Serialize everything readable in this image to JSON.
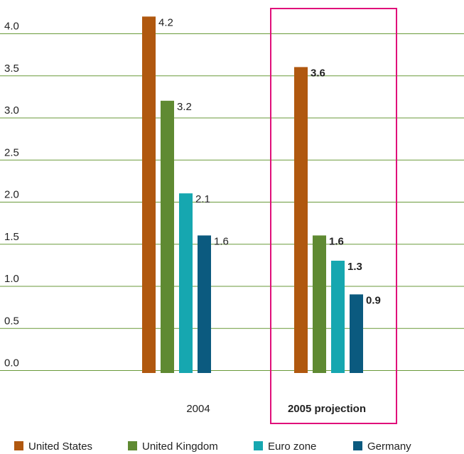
{
  "chart_data": {
    "type": "bar",
    "categories": [
      "2004",
      "2005 projection"
    ],
    "highlighted_category": "2005 projection",
    "series": [
      {
        "name": "United States",
        "color": "#b0580f",
        "values": [
          4.2,
          3.6
        ]
      },
      {
        "name": "United Kingdom",
        "color": "#5f8a32",
        "values": [
          3.2,
          1.6
        ]
      },
      {
        "name": "Euro zone",
        "color": "#16a7b0",
        "values": [
          2.1,
          1.3
        ]
      },
      {
        "name": "Germany",
        "color": "#0b5a7f",
        "values": [
          1.6,
          0.9
        ]
      }
    ],
    "data_labels": [
      [
        "4.2",
        "3.6"
      ],
      [
        "3.2",
        "1.6"
      ],
      [
        "2.1",
        "1.3"
      ],
      [
        "1.6",
        "0.9"
      ]
    ],
    "y_ticks": [
      "0.0",
      "0.5",
      "1.0",
      "1.5",
      "2.0",
      "2.5",
      "3.0",
      "3.5",
      "4.0"
    ],
    "ylim": [
      0,
      4.4
    ],
    "grid": true,
    "gridline_color": "#6a9a3a",
    "highlight_color": "#e0107a",
    "legend_position": "bottom"
  }
}
